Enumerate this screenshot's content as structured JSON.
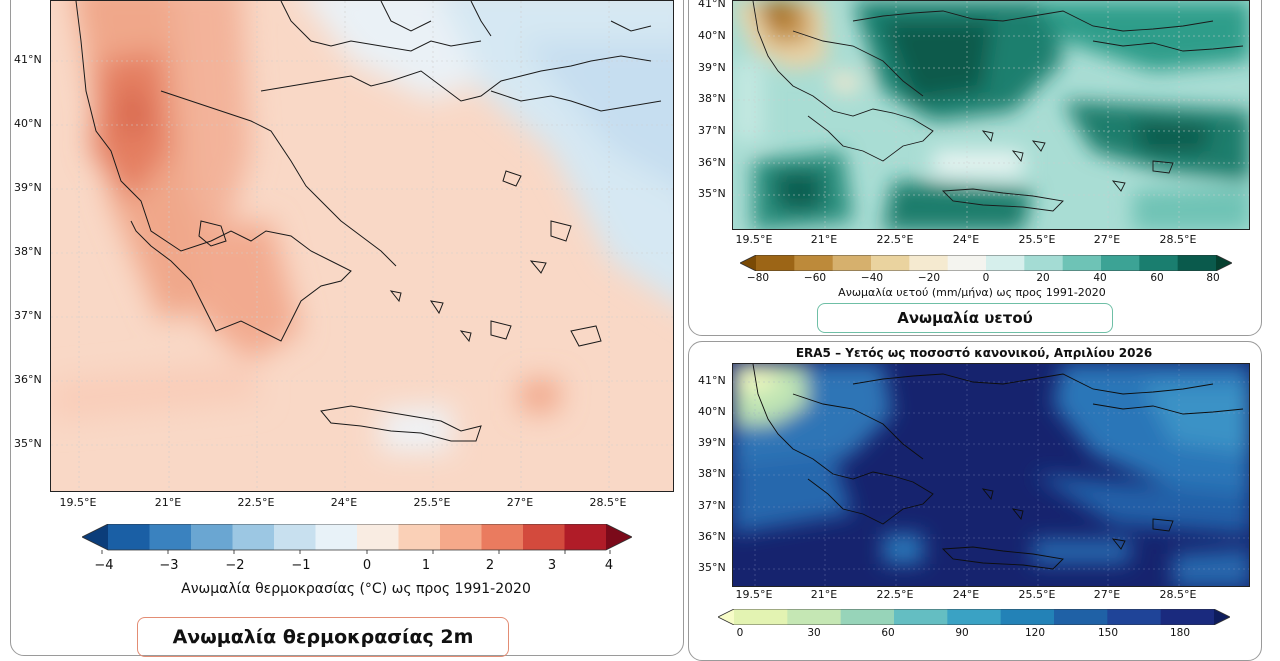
{
  "left_map": {
    "lat_labels": [
      "41°N",
      "40°N",
      "39°N",
      "38°N",
      "37°N",
      "36°N",
      "35°N"
    ],
    "lon_labels": [
      "19.5°E",
      "21°E",
      "22.5°E",
      "24°E",
      "25.5°E",
      "27°E",
      "28.5°E"
    ],
    "colorbar": {
      "ticks": [
        "−4",
        "−3",
        "−2",
        "−1",
        "0",
        "1",
        "2",
        "3",
        "4"
      ],
      "title": "Ανωμαλία θερμοκρασίας (°C) ως προς 1991-2020",
      "range": [
        -4,
        4
      ],
      "colors": [
        "#0b3d7a",
        "#1a5fa5",
        "#3a82bf",
        "#6aa6d2",
        "#9cc7e3",
        "#c8e0ef",
        "#e8f2f8",
        "#f9ece2",
        "#fad0b7",
        "#f5a98a",
        "#ea7b5f",
        "#d34a3d",
        "#b01c28",
        "#7b0a1a"
      ]
    },
    "label_tag": "Ανωμαλία θερμοκρασίας 2m",
    "tag_color": "#fbd3c3"
  },
  "precip_anomaly_map": {
    "lat_labels": [
      "41°N",
      "40°N",
      "39°N",
      "38°N",
      "37°N",
      "36°N",
      "35°N"
    ],
    "lon_labels": [
      "19.5°E",
      "21°E",
      "22.5°E",
      "24°E",
      "25.5°E",
      "27°E",
      "28.5°E"
    ],
    "colorbar": {
      "ticks": [
        "−80",
        "−60",
        "−40",
        "−20",
        "0",
        "20",
        "40",
        "60",
        "80"
      ],
      "title": "Ανωμαλία υετού (mm/μήνα) ως προς 1991-2020",
      "range": [
        -80,
        80
      ],
      "colors": [
        "#7a4a05",
        "#9c6516",
        "#bd8a3a",
        "#d6b06d",
        "#ead39f",
        "#f5ead0",
        "#f4f4ef",
        "#d6efec",
        "#a4dcd4",
        "#6ec3b6",
        "#3ca395",
        "#1a7e6f",
        "#0a5a4c",
        "#05402f"
      ]
    },
    "label_tag": "Ανωμαλία υετού",
    "tag_color": "#c9ece0"
  },
  "precip_percent_map": {
    "title": "ERA5 – Υετός ως ποσοστό κανονικού, Απριλίου 2026",
    "lat_labels": [
      "41°N",
      "40°N",
      "39°N",
      "38°N",
      "37°N",
      "36°N",
      "35°N"
    ],
    "lon_labels": [
      "19.5°E",
      "21°E",
      "22.5°E",
      "24°E",
      "25.5°E",
      "27°E",
      "28.5°E"
    ],
    "colorbar": {
      "ticks": [
        "0",
        "30",
        "60",
        "90",
        "120",
        "150",
        "180"
      ],
      "range": [
        0,
        180
      ],
      "colors": [
        "#f7fcc8",
        "#e3f3b2",
        "#c5e7b4",
        "#97d4b9",
        "#64bec2",
        "#3aa2c4",
        "#2382b7",
        "#1f61a6",
        "#1f4498",
        "#1a2a7e",
        "#0e1c5c"
      ]
    }
  }
}
